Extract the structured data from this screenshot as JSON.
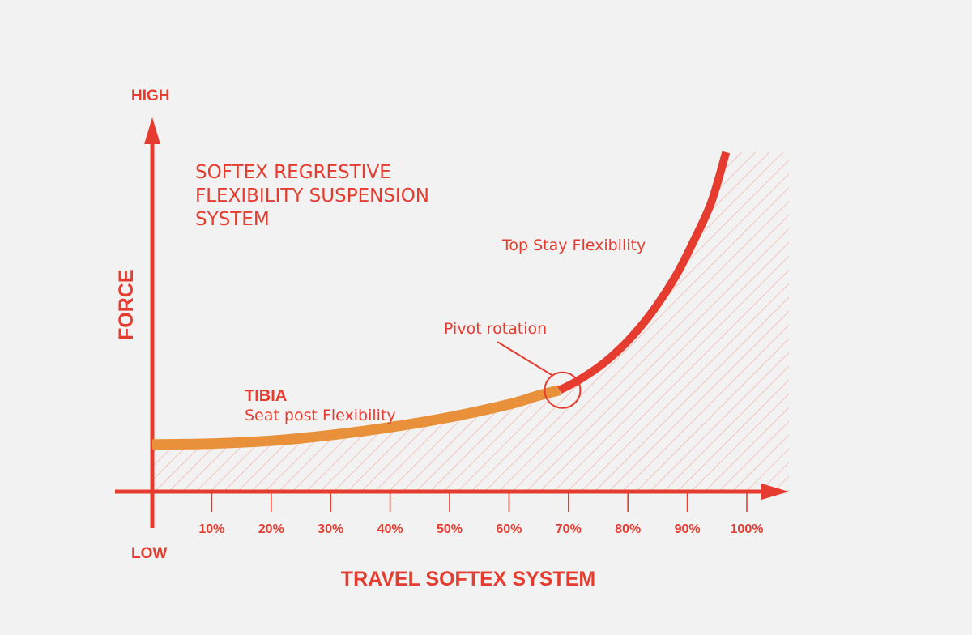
{
  "chart_data": {
    "type": "line",
    "title_lines": [
      "SOFTEX REGRESTIVE",
      "FLEXIBILITY SUSPENSION",
      "SYSTEM"
    ],
    "xlabel": "TRAVEL SOFTEX SYSTEM",
    "ylabel": "FORCE",
    "y_high_label": "HIGH",
    "y_low_label": "LOW",
    "xlim": [
      0,
      100
    ],
    "ylim": [
      0,
      100
    ],
    "x_ticks": [
      10,
      20,
      30,
      40,
      50,
      60,
      70,
      80,
      90,
      100
    ],
    "x_tick_labels": [
      "10%",
      "20%",
      "30%",
      "40%",
      "50%",
      "60%",
      "70%",
      "80%",
      "90%",
      "100%"
    ],
    "grid": false,
    "series": [
      {
        "name": "",
        "color": "#e8913a",
        "x": [
          0,
          10,
          20,
          30,
          40,
          50,
          60,
          65,
          68.5
        ],
        "y": [
          7,
          7.3,
          8.2,
          10,
          12.5,
          15.7,
          19.8,
          22.6,
          24.3
        ]
      },
      {
        "name": "",
        "color": "#e63c2f",
        "x": [
          68.5,
          72,
          76,
          80,
          84,
          88,
          91,
          94,
          96.5
        ],
        "y": [
          24.3,
          27.8,
          33,
          40,
          49,
          60.5,
          71.5,
          84,
          100
        ]
      }
    ],
    "annotations": {
      "tibia_title": "TIBIA",
      "tibia_sub": "Seat post Flexibility",
      "top_stay": "Top Stay Flexibility",
      "pivot": "Pivot rotation",
      "pivot_at": [
        69,
        24.3
      ]
    },
    "colors": {
      "axis": "#e63c2f",
      "text": "#e63c2f",
      "low_segment": "#e8913a",
      "high_segment": "#e63c2f",
      "hatch": "#f3b7b0"
    }
  }
}
